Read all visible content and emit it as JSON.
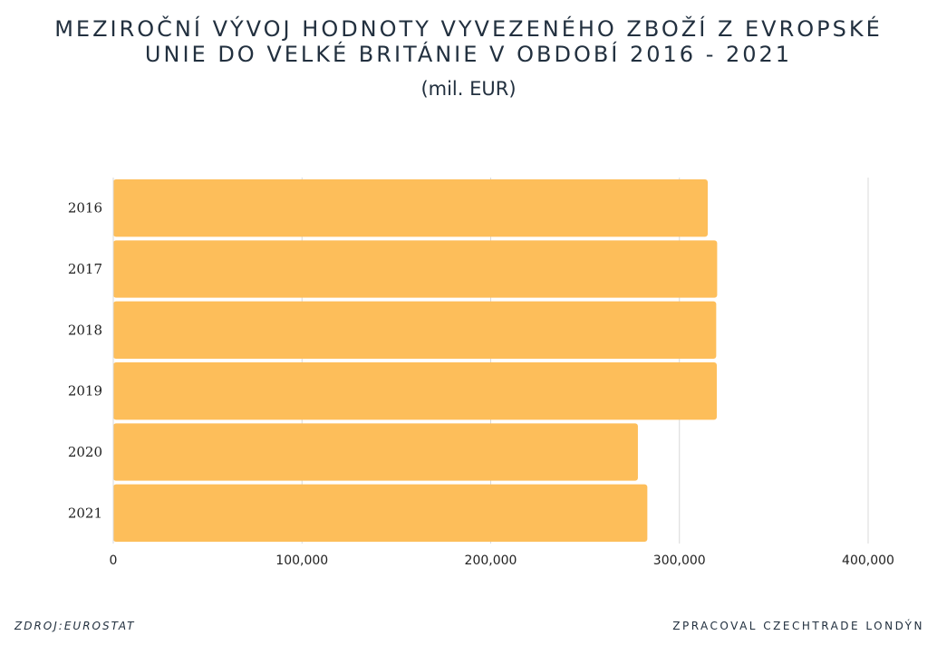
{
  "chart_data": {
    "type": "bar",
    "orientation": "horizontal",
    "title": "MEZIROČNÍ VÝVOJ HODNOTY VYVEZENÉHO ZBOŽÍ Z EVROPSKÉ UNIE DO VELKÉ BRITÁNIE V OBDOBÍ 2016 - 2021",
    "title_lines": [
      "MEZIROČNÍ VÝVOJ HODNOTY VYVEZENÉHO ZBOŽÍ Z EVROPSKÉ",
      "UNIE DO VELKÉ BRITÁNIE V OBDOBÍ 2016 - 2021"
    ],
    "subtitle": "(mil. EUR)",
    "categories": [
      "2016",
      "2017",
      "2018",
      "2019",
      "2020",
      "2021"
    ],
    "values": [
      315000,
      320000,
      319500,
      319800,
      278000,
      283000
    ],
    "xlim": [
      0,
      400000
    ],
    "xticks": [
      0,
      100000,
      200000,
      300000,
      400000
    ],
    "xtick_labels": [
      "0",
      "100,000",
      "200,000",
      "300,000",
      "400,000"
    ],
    "xlabel": "",
    "ylabel": "",
    "grid": true,
    "legend": "none",
    "bar_color": "#fdbe5a",
    "grid_color": "#d9d9d9"
  },
  "footer": {
    "source": "ZDROJ:EUROSTAT",
    "credit": "ZPRACOVAL CZECHTRADE LONDÝN"
  }
}
